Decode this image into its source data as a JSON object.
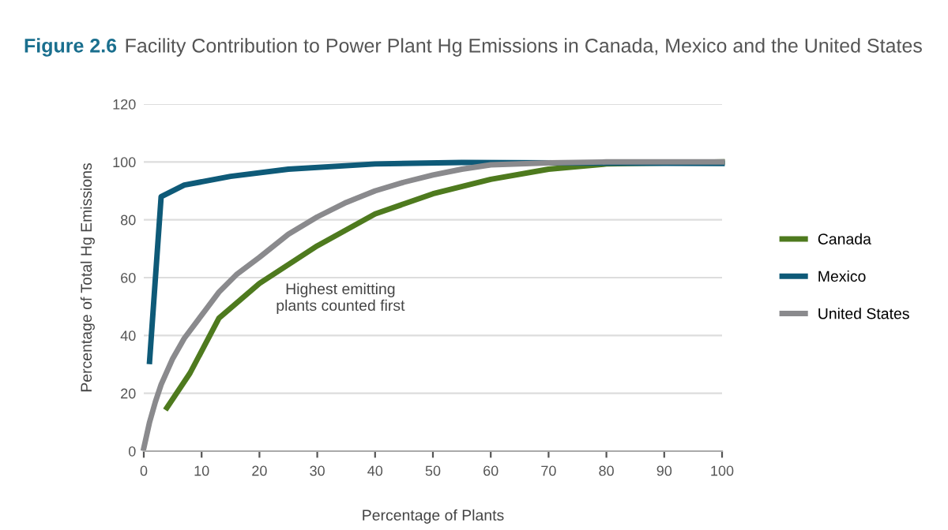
{
  "chart_data": {
    "type": "line",
    "title": "Figure 2.6",
    "subtitle": "Facility Contribution to Power Plant Hg Emissions in Canada, Mexico and the United States",
    "xlabel": "Percentage of Plants",
    "ylabel": "Percentage of Total Hg Emissions",
    "series": [
      {
        "name": "Canada",
        "color": "#4e7a1e",
        "x": [
          4,
          8,
          13,
          20,
          30,
          40,
          50,
          60,
          70,
          80,
          100
        ],
        "values": [
          15,
          27,
          46,
          58,
          71,
          82,
          89,
          94,
          97.5,
          99.3,
          100
        ]
      },
      {
        "name": "Mexico",
        "color": "#0e5a78",
        "x": [
          1,
          3,
          7,
          15,
          25,
          40,
          55,
          100
        ],
        "values": [
          31,
          88,
          92,
          95,
          97.5,
          99.3,
          99.8,
          99.5
        ]
      },
      {
        "name": "United States",
        "color": "#8a8a8d",
        "x": [
          0,
          1,
          2,
          3,
          5,
          7,
          10,
          13,
          16,
          20,
          25,
          30,
          35,
          40,
          45,
          50,
          55,
          60,
          70,
          80,
          100
        ],
        "values": [
          1,
          10,
          17,
          23,
          32,
          39,
          47,
          55,
          61,
          67,
          75,
          81,
          86,
          90,
          93,
          95.5,
          97.5,
          99,
          99.7,
          100,
          100
        ]
      }
    ],
    "annotations": [
      "Highest emitting\nplants counted first"
    ],
    "xlim": [
      0,
      100
    ],
    "xticks": [
      0,
      10,
      20,
      30,
      40,
      50,
      60,
      70,
      80,
      90,
      100
    ],
    "ylim": [
      0,
      120
    ],
    "yticks": [
      0,
      20,
      40,
      60,
      80,
      100,
      120
    ],
    "grid": "y",
    "legend": "right",
    "marker": "none",
    "line_style": "solid"
  }
}
